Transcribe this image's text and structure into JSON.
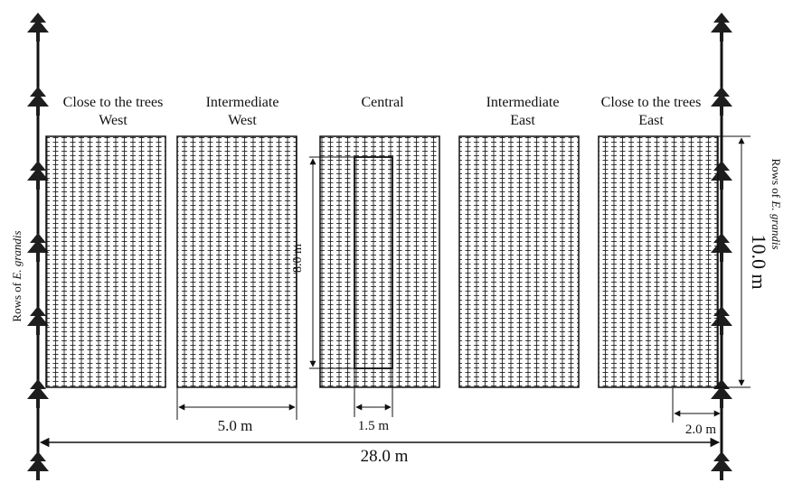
{
  "plots": [
    {
      "line1": "Close to the trees",
      "line2": "West"
    },
    {
      "line1": "Intermediate",
      "line2": "West"
    },
    {
      "line1": "Central",
      "line2": ""
    },
    {
      "line1": "Intermediate",
      "line2": "East"
    },
    {
      "line1": "Close to the trees",
      "line2": "East"
    }
  ],
  "side_labels": {
    "left_prefix": "Rows of ",
    "left_species": "E. grandis",
    "right_prefix": "Rows of ",
    "right_species": "E. grandis"
  },
  "dimensions": {
    "plot_width": "5.0 m",
    "subplot_width": "1.5 m",
    "edge_gap": "2.0 m",
    "total_width": "28.0 m",
    "plot_height": "10.0 m",
    "subplot_height": "8.0 m"
  }
}
